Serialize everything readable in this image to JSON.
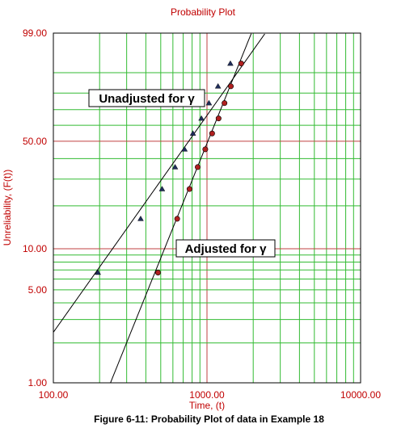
{
  "chart_data": {
    "type": "scatter",
    "title": "Probability Plot",
    "xlabel": "Time, (t)",
    "ylabel": "Unreliability, (F(t))",
    "x_scale": "log",
    "y_scale": "weibull-probability",
    "xlim": [
      100,
      10000
    ],
    "ylim": [
      1,
      99
    ],
    "x_ticks": [
      "100.00",
      "1000.00",
      "10000.00"
    ],
    "y_ticks": [
      "1.00",
      "5.00",
      "10.00",
      "50.00",
      "99.00"
    ],
    "grid": true,
    "series": [
      {
        "name": "Unadjusted for γ",
        "marker": "triangle",
        "color": "#1f2d5a",
        "points": [
          {
            "x": 195,
            "y": 6.7
          },
          {
            "x": 370,
            "y": 16.3
          },
          {
            "x": 510,
            "y": 25.9
          },
          {
            "x": 620,
            "y": 35.6
          },
          {
            "x": 715,
            "y": 45.2
          },
          {
            "x": 810,
            "y": 54.8
          },
          {
            "x": 920,
            "y": 64.4
          },
          {
            "x": 1030,
            "y": 74.1
          },
          {
            "x": 1180,
            "y": 83.7
          },
          {
            "x": 1420,
            "y": 93.3
          }
        ],
        "fit": {
          "beta": 1.65,
          "eta": 950,
          "gamma": 0
        }
      },
      {
        "name": "Adjusted for γ",
        "marker": "circle",
        "color": "#b02020",
        "points": [
          {
            "x": 480,
            "y": 6.7
          },
          {
            "x": 640,
            "y": 16.3
          },
          {
            "x": 770,
            "y": 25.9
          },
          {
            "x": 870,
            "y": 35.6
          },
          {
            "x": 975,
            "y": 45.2
          },
          {
            "x": 1080,
            "y": 54.8
          },
          {
            "x": 1190,
            "y": 64.4
          },
          {
            "x": 1300,
            "y": 74.1
          },
          {
            "x": 1430,
            "y": 83.7
          },
          {
            "x": 1670,
            "y": 93.3
          }
        ],
        "fit": {
          "beta": 2.9,
          "eta": 1150,
          "gamma": 0
        }
      }
    ],
    "annotations": [
      {
        "text": "Unadjusted for γ",
        "anchor_series": 0
      },
      {
        "text": "Adjusted for γ",
        "anchor_series": 1
      }
    ]
  },
  "caption": "Figure 6-11: Probability Plot of data in Example 18",
  "colors": {
    "title": "#c00000",
    "axis_label": "#c00000",
    "grid": "#33bb33",
    "grid_ref": "#c04040",
    "curve": "#000000"
  }
}
